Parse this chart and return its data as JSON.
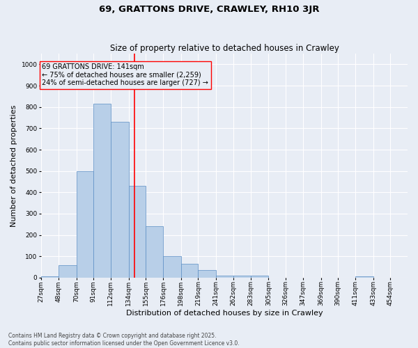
{
  "title": "69, GRATTONS DRIVE, CRAWLEY, RH10 3JR",
  "subtitle": "Size of property relative to detached houses in Crawley",
  "xlabel": "Distribution of detached houses by size in Crawley",
  "ylabel": "Number of detached properties",
  "bins": [
    "27sqm",
    "48sqm",
    "70sqm",
    "91sqm",
    "112sqm",
    "134sqm",
    "155sqm",
    "176sqm",
    "198sqm",
    "219sqm",
    "241sqm",
    "262sqm",
    "283sqm",
    "305sqm",
    "326sqm",
    "347sqm",
    "369sqm",
    "390sqm",
    "411sqm",
    "433sqm",
    "454sqm"
  ],
  "bin_edges": [
    27,
    48,
    70,
    91,
    112,
    134,
    155,
    176,
    198,
    219,
    241,
    262,
    283,
    305,
    326,
    347,
    369,
    390,
    411,
    433,
    454
  ],
  "counts": [
    5,
    60,
    500,
    815,
    730,
    430,
    240,
    100,
    65,
    35,
    10,
    8,
    8,
    0,
    0,
    0,
    0,
    0,
    5,
    0,
    0
  ],
  "bar_color": "#b8cfe8",
  "bar_edge_color": "#5b8ec4",
  "property_line_x": 141,
  "annotation_line1": "69 GRATTONS DRIVE: 141sqm",
  "annotation_line2": "← 75% of detached houses are smaller (2,259)",
  "annotation_line3": "24% of semi-detached houses are larger (727) →",
  "footer_line1": "Contains HM Land Registry data © Crown copyright and database right 2025.",
  "footer_line2": "Contains public sector information licensed under the Open Government Licence v3.0.",
  "ylim": [
    0,
    1050
  ],
  "yticks": [
    0,
    100,
    200,
    300,
    400,
    500,
    600,
    700,
    800,
    900,
    1000
  ],
  "background_color": "#e8edf5",
  "plot_background": "#e8edf5",
  "grid_color": "#ffffff",
  "title_fontsize": 9.5,
  "subtitle_fontsize": 8.5,
  "axis_label_fontsize": 8,
  "tick_fontsize": 6.5,
  "annotation_fontsize": 7,
  "footer_fontsize": 5.5
}
